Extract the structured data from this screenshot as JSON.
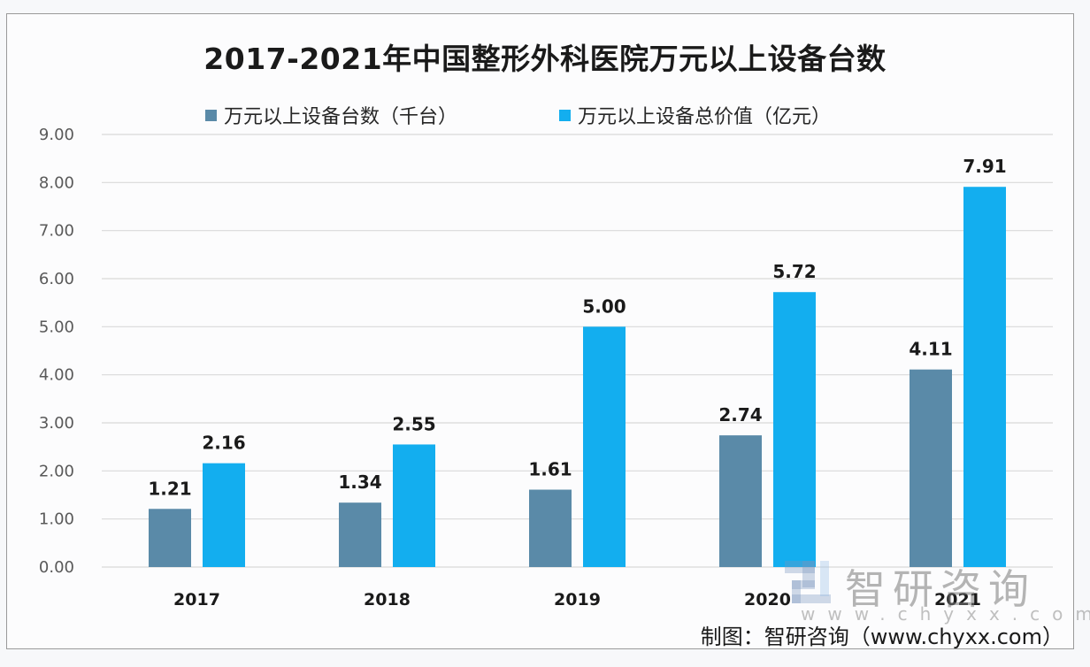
{
  "chart_data": {
    "type": "bar",
    "title": "2017-2021年中国整形外科医院万元以上设备台数",
    "categories": [
      "2017",
      "2018",
      "2019",
      "2020",
      "2021"
    ],
    "series": [
      {
        "name": "万元以上设备台数（千台）",
        "color": "#5a8aa8",
        "values": [
          1.21,
          1.34,
          1.61,
          2.74,
          4.11
        ],
        "labels": [
          "1.21",
          "1.34",
          "1.61",
          "2.74",
          "4.11"
        ]
      },
      {
        "name": "万元以上设备总价值（亿元）",
        "color": "#13aeef",
        "values": [
          2.16,
          2.55,
          5.0,
          5.72,
          7.91
        ],
        "labels": [
          "2.16",
          "2.55",
          "5.00",
          "5.72",
          "7.91"
        ]
      }
    ],
    "xlabel": "",
    "ylabel": "",
    "ylim": [
      0,
      9
    ],
    "yticks": [
      "0.00",
      "1.00",
      "2.00",
      "3.00",
      "4.00",
      "5.00",
      "6.00",
      "7.00",
      "8.00",
      "9.00"
    ],
    "grid": true,
    "legend_position": "top"
  },
  "watermark": {
    "name": "智研咨询",
    "url": "www.chyxx.com"
  },
  "source": "制图：智研咨询（www.chyxx.com）"
}
